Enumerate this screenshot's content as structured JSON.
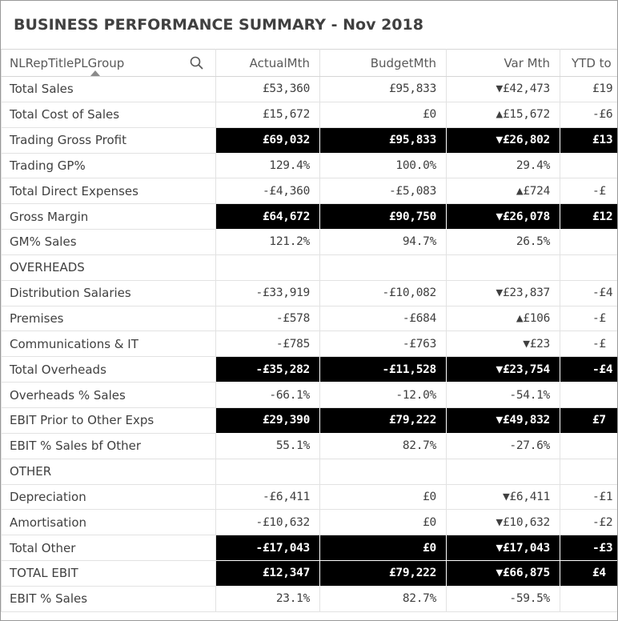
{
  "title": "BUSINESS PERFORMANCE SUMMARY - Nov 2018",
  "table": {
    "columns": [
      "NLRepTitlePLGroup",
      "ActualMth",
      "BudgetMth",
      "Var Mth",
      "YTD to"
    ],
    "rows": [
      {
        "label": "Total Sales",
        "cells": [
          "£53,360",
          "£95,833",
          "▼£42,473",
          "£19"
        ],
        "highlight": false
      },
      {
        "label": "Total Cost of Sales",
        "cells": [
          "£15,672",
          "£0",
          "▲£15,672",
          "-£6"
        ],
        "highlight": false
      },
      {
        "label": "Trading Gross Profit",
        "cells": [
          "£69,032",
          "£95,833",
          "▼£26,802",
          "£13"
        ],
        "highlight": true
      },
      {
        "label": "Trading GP%",
        "cells": [
          "129.4%",
          "100.0%",
          "29.4%",
          null
        ],
        "highlight": false
      },
      {
        "label": "Total Direct Expenses",
        "cells": [
          "-£4,360",
          "-£5,083",
          "▲£724",
          "-£"
        ],
        "highlight": false
      },
      {
        "label": "Gross Margin",
        "cells": [
          "£64,672",
          "£90,750",
          "▼£26,078",
          "£12"
        ],
        "highlight": true
      },
      {
        "label": "GM% Sales",
        "cells": [
          "121.2%",
          "94.7%",
          "26.5%",
          null
        ],
        "highlight": false
      },
      {
        "label": "OVERHEADS",
        "cells": [
          null,
          null,
          null,
          null
        ],
        "highlight": false
      },
      {
        "label": "Distribution Salaries",
        "cells": [
          "-£33,919",
          "-£10,082",
          "▼£23,837",
          "-£4"
        ],
        "highlight": false
      },
      {
        "label": "Premises",
        "cells": [
          "-£578",
          "-£684",
          "▲£106",
          "-£"
        ],
        "highlight": false
      },
      {
        "label": "Communications & IT",
        "cells": [
          "-£785",
          "-£763",
          "▼£23",
          "-£"
        ],
        "highlight": false
      },
      {
        "label": "Total Overheads",
        "cells": [
          "-£35,282",
          "-£11,528",
          "▼£23,754",
          "-£4"
        ],
        "highlight": true
      },
      {
        "label": "Overheads % Sales",
        "cells": [
          "-66.1%",
          "-12.0%",
          "-54.1%",
          null
        ],
        "highlight": false
      },
      {
        "label": "EBIT Prior to Other Exps",
        "cells": [
          "£29,390",
          "£79,222",
          "▼£49,832",
          "£7"
        ],
        "highlight": true
      },
      {
        "label": "EBIT % Sales bf Other",
        "cells": [
          "55.1%",
          "82.7%",
          "-27.6%",
          null
        ],
        "highlight": false
      },
      {
        "label": "OTHER",
        "cells": [
          null,
          null,
          null,
          null
        ],
        "highlight": false
      },
      {
        "label": "Depreciation",
        "cells": [
          "-£6,411",
          "£0",
          "▼£6,411",
          "-£1"
        ],
        "highlight": false
      },
      {
        "label": "Amortisation",
        "cells": [
          "-£10,632",
          "£0",
          "▼£10,632",
          "-£2"
        ],
        "highlight": false
      },
      {
        "label": "Total Other",
        "cells": [
          "-£17,043",
          "£0",
          "▼£17,043",
          "-£3"
        ],
        "highlight": true
      },
      {
        "label": "TOTAL EBIT",
        "cells": [
          "£12,347",
          "£79,222",
          "▼£66,875",
          "£4"
        ],
        "highlight": true
      },
      {
        "label": "EBIT % Sales",
        "cells": [
          "23.1%",
          "82.7%",
          "-59.5%",
          null
        ],
        "highlight": false
      }
    ]
  }
}
